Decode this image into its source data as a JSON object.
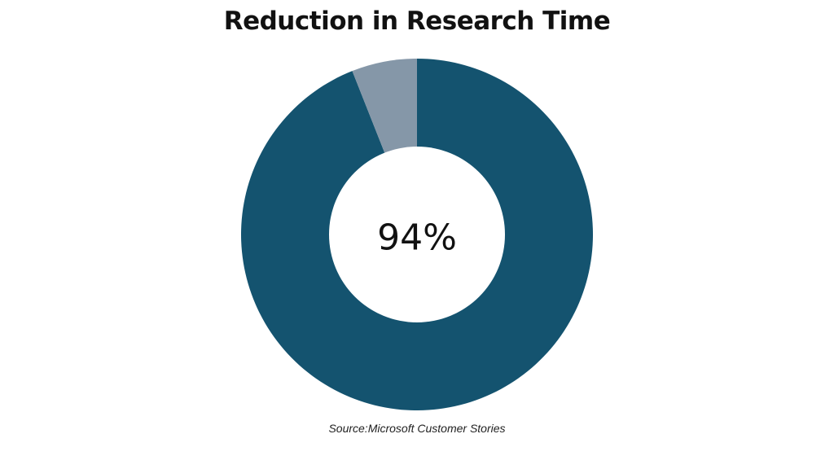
{
  "chart_data": {
    "type": "pie",
    "title": "Reduction in Research Time",
    "center_label": "94%",
    "slices": [
      {
        "value": 94,
        "color": "#14536f"
      },
      {
        "value": 6,
        "color": "#8597a8"
      }
    ],
    "start": "top",
    "direction": "clockwise",
    "donut": true
  },
  "source": "Source:Microsoft Customer Stories"
}
